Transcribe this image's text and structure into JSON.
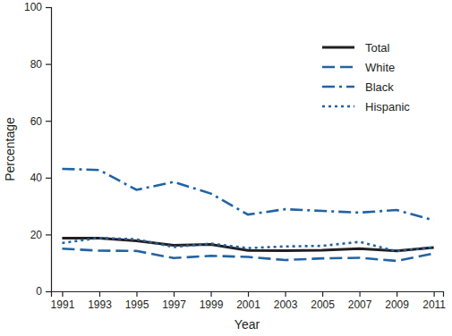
{
  "chart_data": {
    "type": "line",
    "x_label": "Year",
    "y_label": "Percentage",
    "x": [
      1991,
      1993,
      1995,
      1997,
      1999,
      2001,
      2003,
      2005,
      2007,
      2009,
      2011
    ],
    "series": [
      {
        "name": "Total",
        "color": "#231f20",
        "line_style": "solid",
        "values": [
          18.7,
          18.7,
          17.8,
          16.2,
          16.5,
          14.4,
          14.3,
          14.5,
          15.0,
          14.2,
          15.4
        ]
      },
      {
        "name": "White",
        "color": "#2263a3",
        "line_style": "dashed",
        "values": [
          15.0,
          14.3,
          14.2,
          11.7,
          12.5,
          12.1,
          11.0,
          11.6,
          11.8,
          10.7,
          13.3
        ]
      },
      {
        "name": "Black",
        "color": "#2263a3",
        "line_style": "dashdot",
        "values": [
          43.1,
          42.7,
          35.7,
          38.5,
          34.4,
          27.0,
          28.9,
          28.3,
          27.7,
          28.6,
          25.0
        ]
      },
      {
        "name": "Hispanic",
        "color": "#2263a3",
        "line_style": "dotted",
        "values": [
          17.0,
          18.8,
          18.3,
          15.6,
          16.8,
          15.2,
          15.8,
          16.0,
          17.4,
          14.1,
          15.5
        ]
      }
    ],
    "xlim": [
      1990.4,
      2011.5
    ],
    "xticks": [
      1991,
      1993,
      1995,
      1997,
      1999,
      2001,
      2003,
      2005,
      2007,
      2009,
      2011
    ],
    "ylim": [
      0,
      100
    ],
    "yticks": [
      0,
      20,
      40,
      60,
      80,
      100
    ],
    "grid": false,
    "legend": "top-right"
  }
}
